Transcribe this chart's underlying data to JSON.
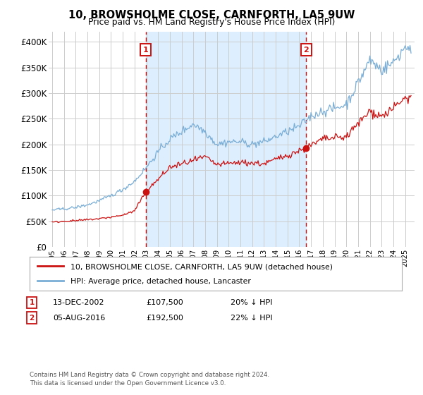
{
  "title": "10, BROWSHOLME CLOSE, CARNFORTH, LA5 9UW",
  "subtitle": "Price paid vs. HM Land Registry's House Price Index (HPI)",
  "background_color": "#ffffff",
  "grid_color": "#cccccc",
  "hpi_color": "#7aaed6",
  "price_color": "#cc1111",
  "shade_color": "#ddeeff",
  "ylim": [
    0,
    420000
  ],
  "yticks": [
    0,
    50000,
    100000,
    150000,
    200000,
    250000,
    300000,
    350000,
    400000
  ],
  "ytick_labels": [
    "£0",
    "£50K",
    "£100K",
    "£150K",
    "£200K",
    "£250K",
    "£300K",
    "£350K",
    "£400K"
  ],
  "marker1_x": 2002.96,
  "marker2_x": 2016.59,
  "marker1_y": 107500,
  "marker2_y": 192500,
  "marker1_label": "13-DEC-2002",
  "marker1_price": "£107,500",
  "marker1_hpi": "20% ↓ HPI",
  "marker2_label": "05-AUG-2016",
  "marker2_price": "£192,500",
  "marker2_hpi": "22% ↓ HPI",
  "legend_line1": "10, BROWSHOLME CLOSE, CARNFORTH, LA5 9UW (detached house)",
  "legend_line2": "HPI: Average price, detached house, Lancaster",
  "footnote": "Contains HM Land Registry data © Crown copyright and database right 2024.\nThis data is licensed under the Open Government Licence v3.0.",
  "xlim_left": 1994.7,
  "xlim_right": 2025.8
}
